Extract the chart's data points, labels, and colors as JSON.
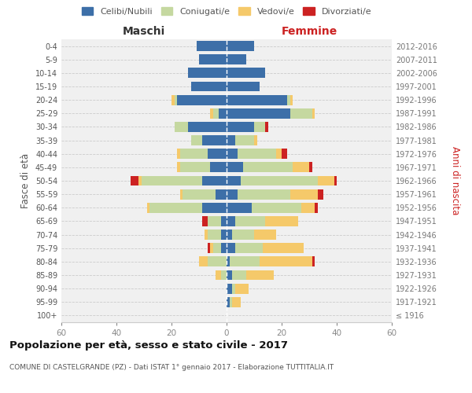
{
  "age_groups": [
    "100+",
    "95-99",
    "90-94",
    "85-89",
    "80-84",
    "75-79",
    "70-74",
    "65-69",
    "60-64",
    "55-59",
    "50-54",
    "45-49",
    "40-44",
    "35-39",
    "30-34",
    "25-29",
    "20-24",
    "15-19",
    "10-14",
    "5-9",
    "0-4"
  ],
  "birth_years": [
    "≤ 1916",
    "1917-1921",
    "1922-1926",
    "1927-1931",
    "1932-1936",
    "1937-1941",
    "1942-1946",
    "1947-1951",
    "1952-1956",
    "1957-1961",
    "1962-1966",
    "1967-1971",
    "1972-1976",
    "1977-1981",
    "1982-1986",
    "1987-1991",
    "1992-1996",
    "1997-2001",
    "2002-2006",
    "2007-2011",
    "2012-2016"
  ],
  "maschi": {
    "celibi": [
      0,
      0,
      0,
      0,
      0,
      2,
      2,
      2,
      9,
      4,
      9,
      6,
      7,
      9,
      14,
      3,
      18,
      13,
      14,
      10,
      11
    ],
    "coniugati": [
      0,
      0,
      0,
      2,
      7,
      3,
      5,
      5,
      19,
      12,
      22,
      11,
      10,
      4,
      5,
      2,
      1,
      0,
      0,
      0,
      0
    ],
    "vedovi": [
      0,
      0,
      0,
      2,
      3,
      1,
      1,
      0,
      1,
      1,
      1,
      1,
      1,
      0,
      0,
      1,
      1,
      0,
      0,
      0,
      0
    ],
    "divorziati": [
      0,
      0,
      0,
      0,
      0,
      1,
      0,
      2,
      0,
      0,
      3,
      0,
      0,
      0,
      0,
      0,
      0,
      0,
      0,
      0,
      0
    ]
  },
  "femmine": {
    "nubili": [
      0,
      1,
      2,
      2,
      1,
      3,
      2,
      3,
      9,
      4,
      5,
      6,
      4,
      3,
      10,
      23,
      22,
      12,
      14,
      7,
      10
    ],
    "coniugate": [
      0,
      1,
      1,
      5,
      11,
      10,
      8,
      11,
      18,
      19,
      28,
      18,
      14,
      7,
      4,
      8,
      1,
      0,
      0,
      0,
      0
    ],
    "vedove": [
      0,
      3,
      5,
      10,
      19,
      15,
      8,
      12,
      5,
      10,
      6,
      6,
      2,
      1,
      0,
      1,
      1,
      0,
      0,
      0,
      0
    ],
    "divorziate": [
      0,
      0,
      0,
      0,
      1,
      0,
      0,
      0,
      1,
      2,
      1,
      1,
      2,
      0,
      1,
      0,
      0,
      0,
      0,
      0,
      0
    ]
  },
  "colors": {
    "celibi": "#3d6fa8",
    "coniugati": "#c5d8a0",
    "vedovi": "#f5c96a",
    "divorziati": "#cc2222"
  },
  "xlim": 60,
  "title": "Popolazione per età, sesso e stato civile - 2017",
  "subtitle": "COMUNE DI CASTELGRANDE (PZ) - Dati ISTAT 1° gennaio 2017 - Elaborazione TUTTITALIA.IT",
  "ylabel_left": "Fasce di età",
  "ylabel_right": "Anni di nascita",
  "xlabel_maschi": "Maschi",
  "xlabel_femmine": "Femmine",
  "legend_labels": [
    "Celibi/Nubili",
    "Coniugati/e",
    "Vedovi/e",
    "Divorziati/e"
  ],
  "background_color": "#f0f0f0"
}
